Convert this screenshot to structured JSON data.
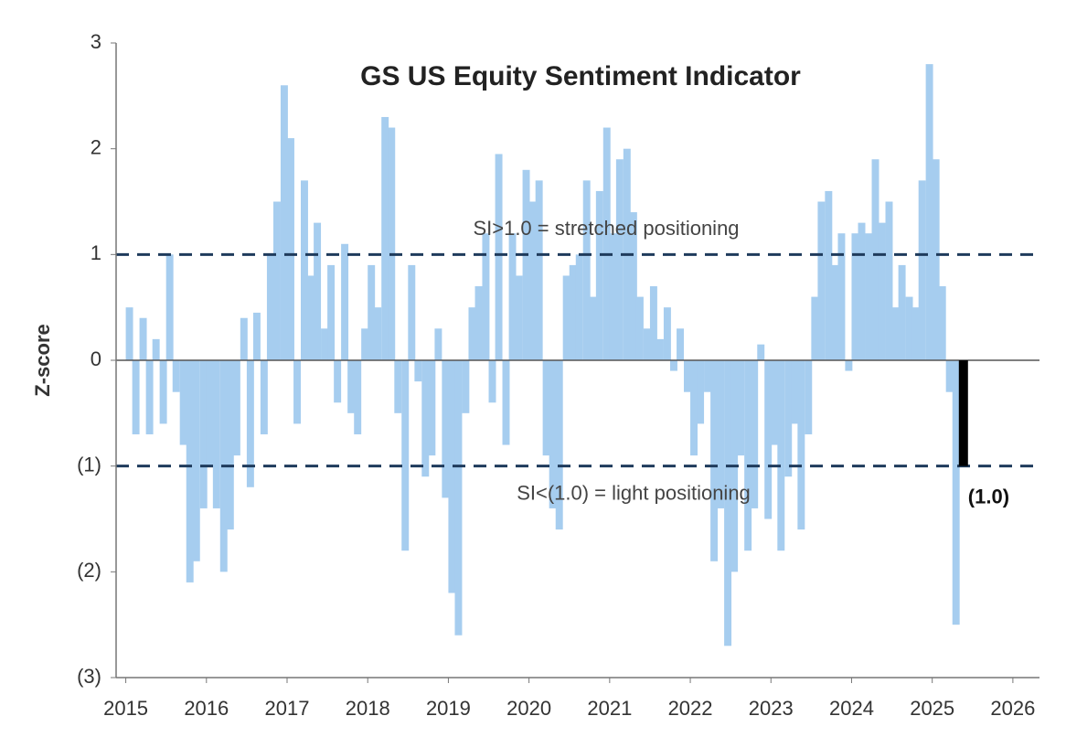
{
  "chart_data": {
    "type": "bar",
    "title": "GS US Equity Sentiment Indicator",
    "y_label": "Z-score",
    "color": "#a6cdef",
    "x": [
      2015,
      2015.08,
      2015.17,
      2015.25,
      2015.33,
      2015.42,
      2015.5,
      2015.58,
      2015.67,
      2015.75,
      2015.83,
      2015.92,
      2016,
      2016.08,
      2016.17,
      2016.25,
      2016.33,
      2016.42,
      2016.5,
      2016.58,
      2016.67,
      2016.75,
      2016.83,
      2016.92,
      2017,
      2017.08,
      2017.17,
      2017.25,
      2017.33,
      2017.42,
      2017.5,
      2017.58,
      2017.67,
      2017.75,
      2017.83,
      2017.92,
      2018,
      2018.08,
      2018.17,
      2018.25,
      2018.33,
      2018.42,
      2018.5,
      2018.58,
      2018.67,
      2018.75,
      2018.83,
      2018.92,
      2019,
      2019.08,
      2019.17,
      2019.25,
      2019.33,
      2019.42,
      2019.5,
      2019.58,
      2019.67,
      2019.75,
      2019.83,
      2019.92,
      2020,
      2020.08,
      2020.17,
      2020.25,
      2020.33,
      2020.42,
      2020.5,
      2020.58,
      2020.67,
      2020.75,
      2020.83,
      2020.92,
      2021,
      2021.08,
      2021.17,
      2021.25,
      2021.33,
      2021.42,
      2021.5,
      2021.58,
      2021.67,
      2021.75,
      2021.83,
      2021.92,
      2022,
      2022.08,
      2022.17,
      2022.25,
      2022.33,
      2022.42,
      2022.5,
      2022.58,
      2022.67,
      2022.75,
      2022.83,
      2022.92,
      2023,
      2023.08,
      2023.17,
      2023.25,
      2023.33,
      2023.42,
      2023.5,
      2023.58,
      2023.67,
      2023.75,
      2023.83,
      2023.92,
      2024,
      2024.08,
      2024.17,
      2024.25,
      2024.33,
      2024.42,
      2024.5,
      2024.58,
      2024.67,
      2024.75,
      2024.83,
      2024.92,
      2025,
      2025.08,
      2025.17,
      2025.25
    ],
    "values": [
      0.5,
      -0.7,
      0.4,
      -0.7,
      0.2,
      -0.6,
      1.0,
      -0.3,
      -0.8,
      -2.1,
      -1.9,
      -1.4,
      -1.0,
      -1.4,
      -2.0,
      -1.6,
      -0.9,
      0.4,
      -1.2,
      0.45,
      -0.7,
      1.0,
      1.5,
      2.6,
      2.1,
      -0.6,
      1.7,
      0.8,
      1.3,
      0.3,
      0.9,
      -0.4,
      1.1,
      -0.5,
      -0.7,
      0.3,
      0.9,
      0.5,
      2.3,
      2.2,
      -0.5,
      -1.8,
      0.9,
      -0.2,
      -1.1,
      -0.9,
      0.3,
      -1.3,
      -2.2,
      -2.6,
      -0.5,
      0.5,
      0.7,
      1.2,
      -0.4,
      1.95,
      -0.8,
      1.2,
      0.8,
      1.8,
      1.5,
      1.7,
      -0.9,
      -1.4,
      -1.6,
      0.8,
      0.9,
      1.0,
      1.7,
      0.6,
      1.6,
      2.2,
      1.2,
      1.9,
      2.0,
      1.4,
      0.6,
      0.3,
      0.7,
      0.2,
      0.5,
      -0.1,
      0.3,
      -0.3,
      -0.9,
      -0.6,
      -0.3,
      -1.9,
      -1.4,
      -2.7,
      -2.0,
      -0.9,
      -1.8,
      -1.4,
      0.15,
      -1.5,
      -0.8,
      -1.8,
      -1.1,
      -0.6,
      -1.6,
      -0.7,
      0.6,
      1.5,
      1.6,
      0.9,
      1.2,
      -0.1,
      1.2,
      1.3,
      1.2,
      1.9,
      1.3,
      1.5,
      0.5,
      0.9,
      0.6,
      0.5,
      1.7,
      2.8,
      1.9,
      0.7,
      -0.3,
      -2.5
    ],
    "highlight": {
      "x": 2025.33,
      "value": -1.0,
      "value_label": "(1.0)",
      "color": "#000000"
    },
    "ref_lines": [
      1,
      -1
    ],
    "annotations": [
      "SI>1.0 = stretched positioning",
      "SI<(1.0) = light positioning"
    ],
    "xlim": [
      2014.88,
      2026.33
    ],
    "xticks": [
      2015,
      2016,
      2017,
      2018,
      2019,
      2020,
      2021,
      2022,
      2023,
      2024,
      2025,
      2026
    ],
    "ylim": [
      -3,
      3
    ],
    "yticks": [
      3,
      2,
      1,
      0,
      {
        "value": -1,
        "label": "(1)"
      },
      {
        "value": -2,
        "label": "(2)"
      },
      {
        "value": -3,
        "label": "(3)"
      }
    ]
  }
}
